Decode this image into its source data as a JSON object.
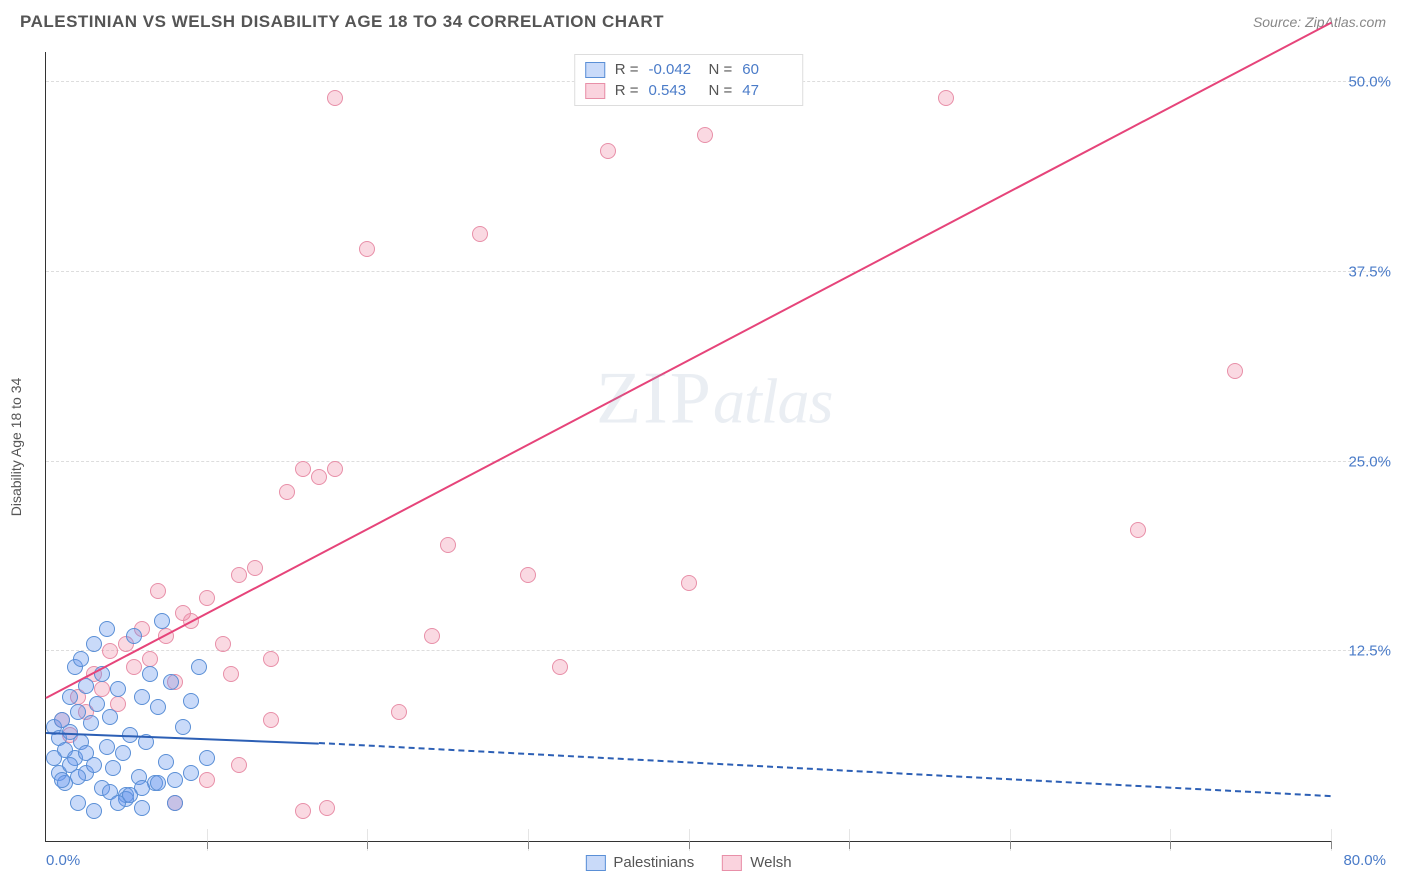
{
  "header": {
    "title": "PALESTINIAN VS WELSH DISABILITY AGE 18 TO 34 CORRELATION CHART",
    "source": "Source: ZipAtlas.com"
  },
  "axes": {
    "ylabel": "Disability Age 18 to 34",
    "xmin": 0,
    "xmax": 80,
    "ymin": 0,
    "ymax": 52,
    "xmin_label": "0.0%",
    "xmax_label": "80.0%",
    "yticks": [
      12.5,
      25.0,
      37.5,
      50.0
    ],
    "ytick_labels": [
      "12.5%",
      "25.0%",
      "37.5%",
      "50.0%"
    ],
    "xtick_positions": [
      0,
      10,
      20,
      30,
      40,
      50,
      60,
      70,
      80
    ],
    "grid_color": "#dddddd"
  },
  "series": {
    "palestinians": {
      "label": "Palestinians",
      "color_fill": "rgba(100,149,237,0.35)",
      "color_border": "#5a8fd6",
      "r": "-0.042",
      "n": "60",
      "trend": {
        "x1": 0,
        "y1": 7.2,
        "x2": 17,
        "y2": 6.5,
        "color": "#2c5fb5",
        "dash_x2": 80,
        "dash_y2": 3.0
      },
      "points": [
        [
          0.5,
          7.5
        ],
        [
          0.8,
          6.8
        ],
        [
          1.0,
          8.0
        ],
        [
          1.2,
          6.0
        ],
        [
          1.5,
          7.2
        ],
        [
          1.8,
          5.5
        ],
        [
          2.0,
          8.5
        ],
        [
          2.2,
          6.5
        ],
        [
          2.5,
          4.5
        ],
        [
          2.8,
          7.8
        ],
        [
          3.0,
          5.0
        ],
        [
          3.2,
          9.0
        ],
        [
          3.5,
          3.5
        ],
        [
          3.8,
          6.2
        ],
        [
          4.0,
          8.2
        ],
        [
          4.2,
          4.8
        ],
        [
          4.5,
          10.0
        ],
        [
          4.8,
          5.8
        ],
        [
          5.0,
          3.0
        ],
        [
          5.2,
          7.0
        ],
        [
          5.5,
          13.5
        ],
        [
          5.8,
          4.2
        ],
        [
          6.0,
          9.5
        ],
        [
          6.2,
          6.5
        ],
        [
          6.5,
          11.0
        ],
        [
          6.8,
          3.8
        ],
        [
          7.0,
          8.8
        ],
        [
          7.2,
          14.5
        ],
        [
          7.5,
          5.2
        ],
        [
          7.8,
          10.5
        ],
        [
          8.0,
          4.0
        ],
        [
          8.5,
          7.5
        ],
        [
          9.0,
          9.2
        ],
        [
          9.5,
          11.5
        ],
        [
          10.0,
          5.5
        ],
        [
          2.0,
          2.5
        ],
        [
          3.0,
          2.0
        ],
        [
          4.0,
          3.2
        ],
        [
          5.0,
          2.8
        ],
        [
          6.0,
          3.5
        ],
        [
          1.5,
          9.5
        ],
        [
          2.5,
          10.2
        ],
        [
          3.5,
          11.0
        ],
        [
          0.8,
          4.5
        ],
        [
          1.2,
          3.8
        ],
        [
          1.8,
          11.5
        ],
        [
          2.2,
          12.0
        ],
        [
          3.0,
          13.0
        ],
        [
          3.8,
          14.0
        ],
        [
          4.5,
          2.5
        ],
        [
          5.2,
          3.0
        ],
        [
          6.0,
          2.2
        ],
        [
          7.0,
          3.8
        ],
        [
          8.0,
          2.5
        ],
        [
          9.0,
          4.5
        ],
        [
          0.5,
          5.5
        ],
        [
          1.0,
          4.0
        ],
        [
          1.5,
          5.0
        ],
        [
          2.0,
          4.2
        ],
        [
          2.5,
          5.8
        ]
      ]
    },
    "welsh": {
      "label": "Welsh",
      "color_fill": "rgba(240,128,160,0.30)",
      "color_border": "#e88fa8",
      "r": "0.543",
      "n": "47",
      "trend": {
        "x1": 0,
        "y1": 9.5,
        "x2": 80,
        "y2": 54.0,
        "color": "#e6447a",
        "dash_x2": 80,
        "dash_y2": 54.0
      },
      "points": [
        [
          1.0,
          8.0
        ],
        [
          1.5,
          7.0
        ],
        [
          2.0,
          9.5
        ],
        [
          2.5,
          8.5
        ],
        [
          3.0,
          11.0
        ],
        [
          3.5,
          10.0
        ],
        [
          4.0,
          12.5
        ],
        [
          4.5,
          9.0
        ],
        [
          5.0,
          13.0
        ],
        [
          5.5,
          11.5
        ],
        [
          6.0,
          14.0
        ],
        [
          6.5,
          12.0
        ],
        [
          7.0,
          16.5
        ],
        [
          7.5,
          13.5
        ],
        [
          8.0,
          10.5
        ],
        [
          8.5,
          15.0
        ],
        [
          9.0,
          14.5
        ],
        [
          10.0,
          16.0
        ],
        [
          11.0,
          13.0
        ],
        [
          12.0,
          17.5
        ],
        [
          13.0,
          18.0
        ],
        [
          14.0,
          12.0
        ],
        [
          15.0,
          23.0
        ],
        [
          16.0,
          24.5
        ],
        [
          17.0,
          24.0
        ],
        [
          18.0,
          24.5
        ],
        [
          20.0,
          39.0
        ],
        [
          22.0,
          8.5
        ],
        [
          24.0,
          13.5
        ],
        [
          25.0,
          19.5
        ],
        [
          27.0,
          40.0
        ],
        [
          30.0,
          17.5
        ],
        [
          32.0,
          11.5
        ],
        [
          35.0,
          45.5
        ],
        [
          40.0,
          17.0
        ],
        [
          41.0,
          46.5
        ],
        [
          8.0,
          2.5
        ],
        [
          10.0,
          4.0
        ],
        [
          12.0,
          5.0
        ],
        [
          14.0,
          8.0
        ],
        [
          16.0,
          2.0
        ],
        [
          17.5,
          2.2
        ],
        [
          68.0,
          20.5
        ],
        [
          56.0,
          49.0
        ],
        [
          74.0,
          31.0
        ],
        [
          18.0,
          49.0
        ],
        [
          11.5,
          11.0
        ]
      ]
    }
  },
  "legend": {
    "series_a": "Palestinians",
    "series_b": "Welsh"
  },
  "stats_labels": {
    "r": "R =",
    "n": "N ="
  },
  "watermark": {
    "zip": "ZIP",
    "atlas": "atlas"
  }
}
